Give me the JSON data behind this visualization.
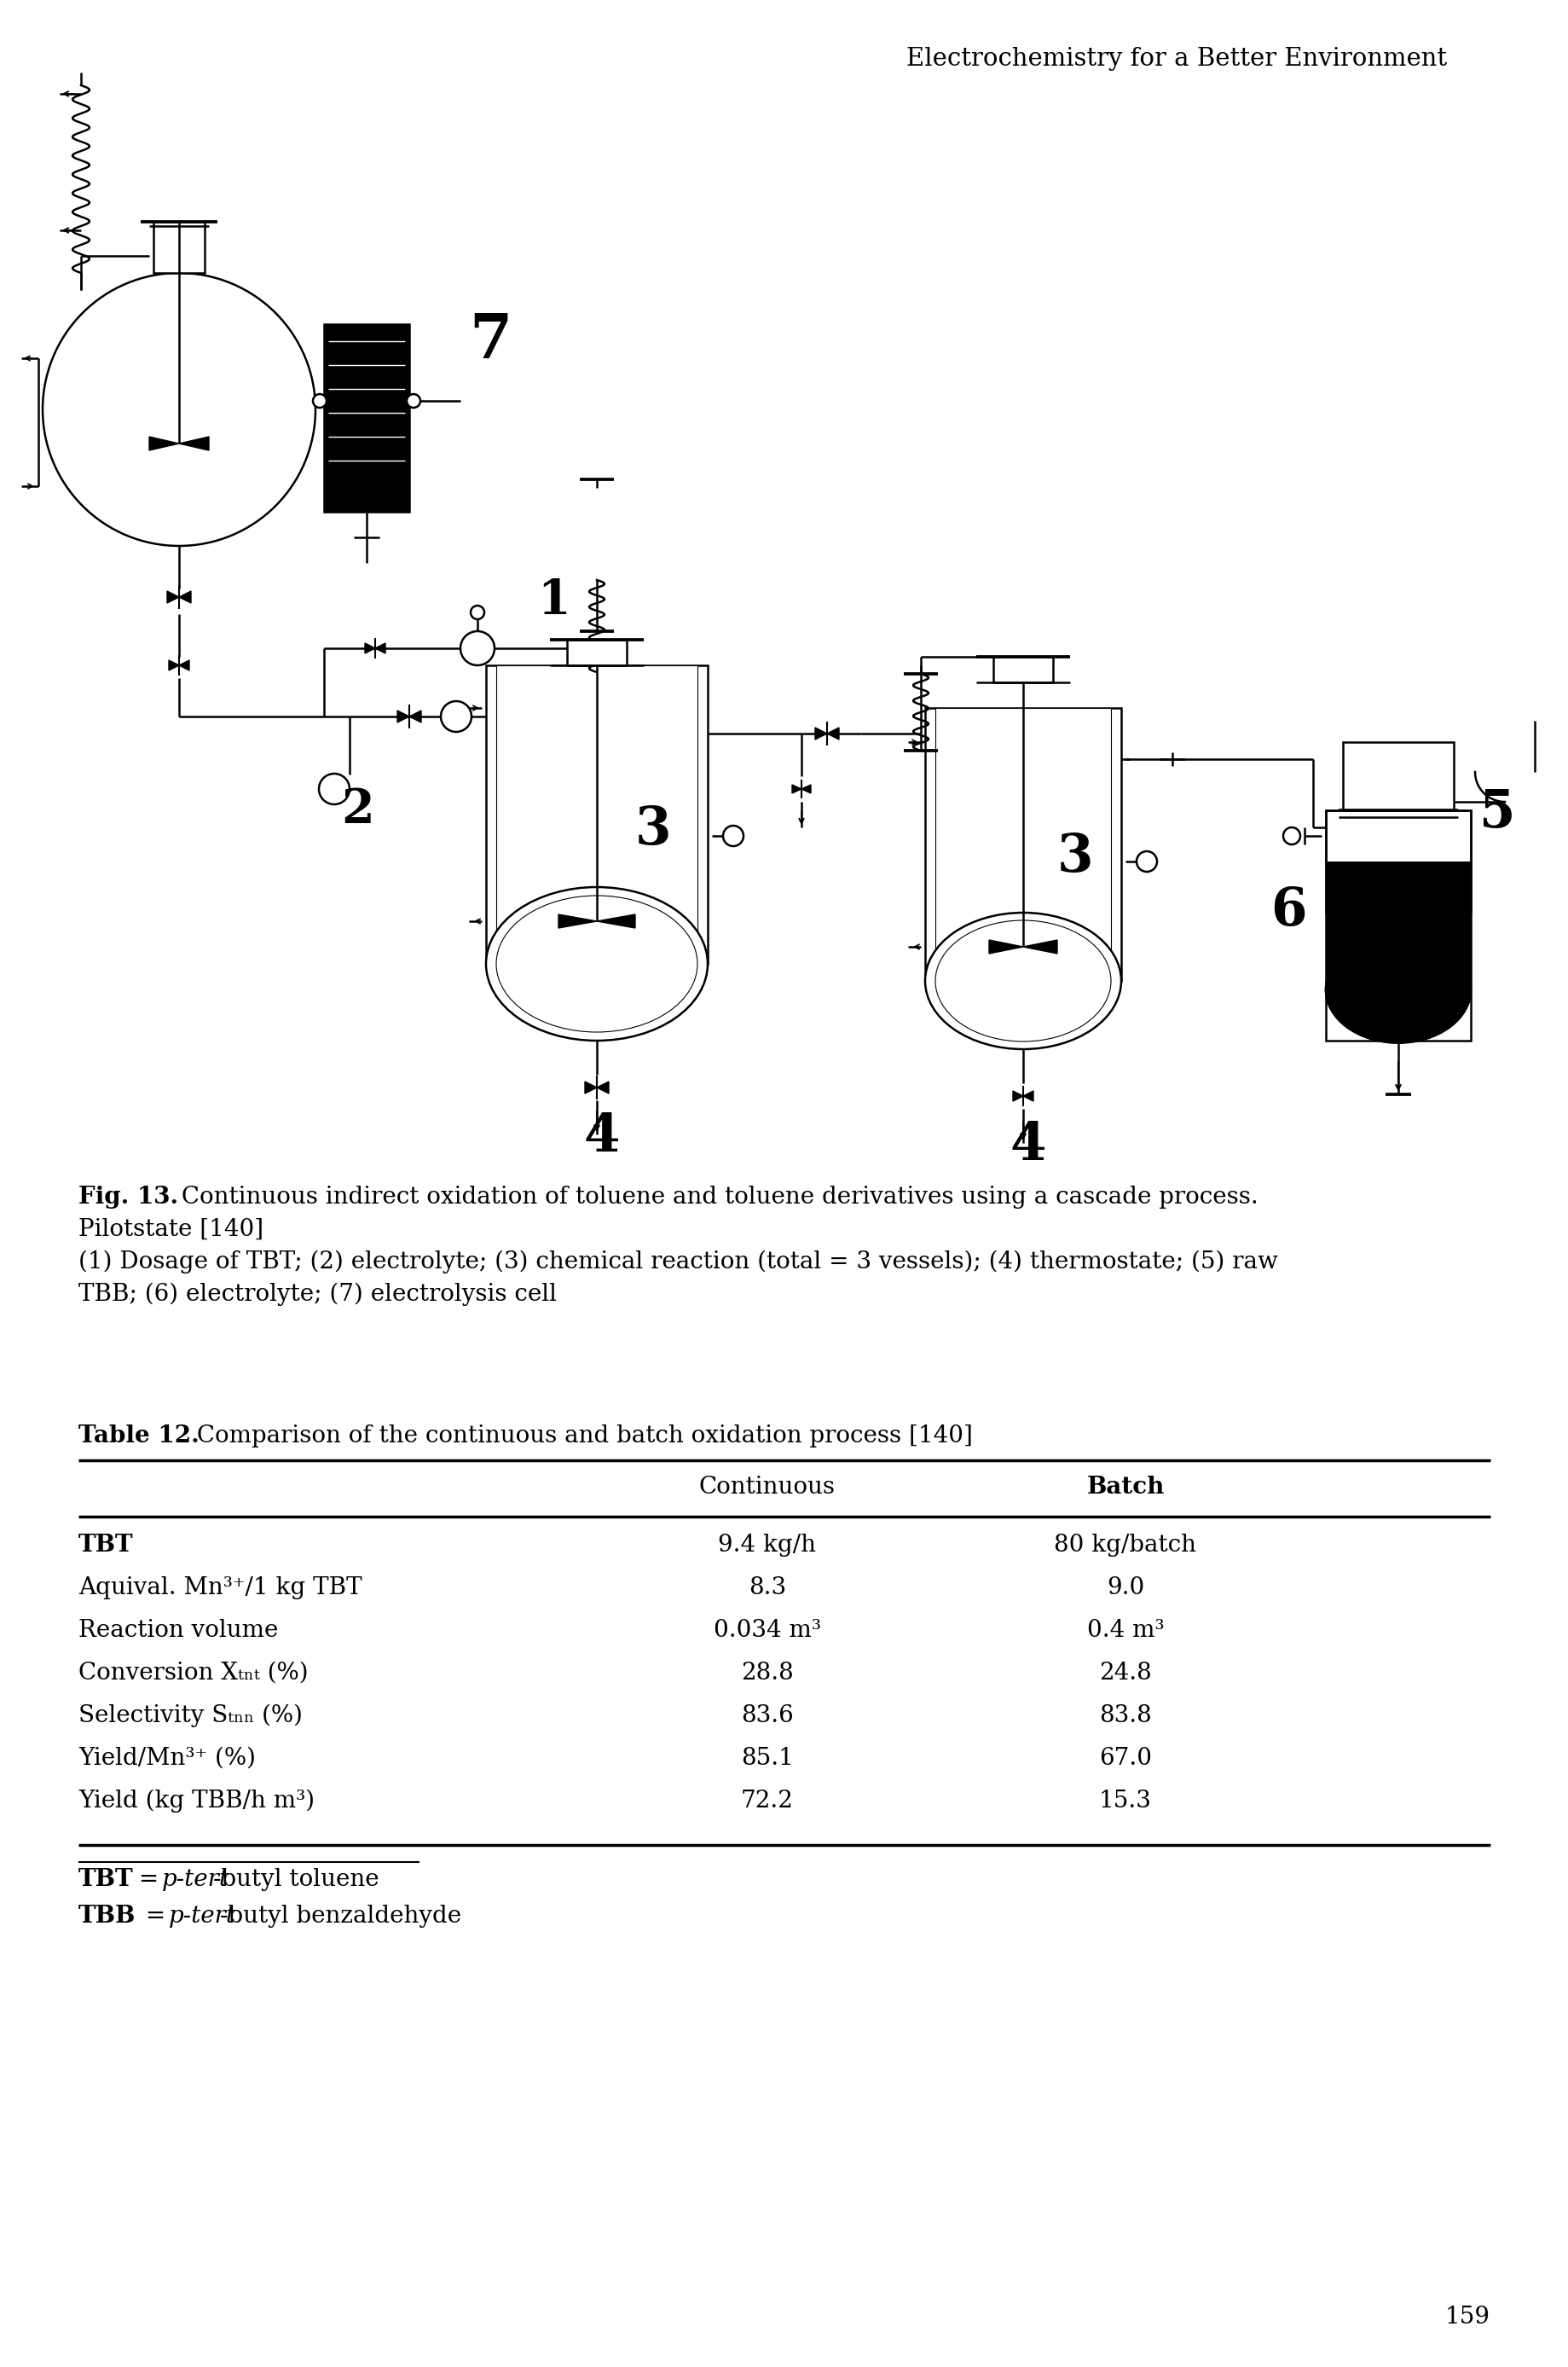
{
  "page_header": "Electrochemistry for a Better Environment",
  "page_number": "159",
  "fig_caption_bold": "Fig. 13.",
  "fig_caption_rest": " Continuous indirect oxidation of toluene and toluene derivatives using a cascade process.",
  "fig_caption_line2": "Pilotstate [140]",
  "fig_caption_line3": "(1) Dosage of TBT; (2) electrolyte; (3) chemical reaction (total = 3 vessels); (4) thermostate; (5) raw",
  "fig_caption_line4": "TBB; (6) electrolyte; (7) electrolysis cell",
  "table_title_bold": "Table 12.",
  "table_title_rest": " Comparison of the continuous and batch oxidation process [140]",
  "col_header1": "Continuous",
  "col_header2": "Batch",
  "rows": [
    {
      "label": "TBT",
      "bold": true,
      "c1": "9.4 kg/h",
      "c2": "80 kg/batch"
    },
    {
      "label": "Aquival. Mn³⁺/1 kg TBT",
      "bold": false,
      "c1": "8.3",
      "c2": "9.0"
    },
    {
      "label": "Reaction volume",
      "bold": false,
      "c1": "0.034 m³",
      "c2": "0.4 m³"
    },
    {
      "label": "Conversion Xₜₙₜ (%)",
      "bold": false,
      "c1": "28.8",
      "c2": "24.8"
    },
    {
      "label": "Selectivity Sₜₙₙ (%)",
      "bold": false,
      "c1": "83.6",
      "c2": "83.8"
    },
    {
      "label": "Yield/Mn³⁺ (%)",
      "bold": false,
      "c1": "85.1",
      "c2": "67.0"
    },
    {
      "label": "Yield (kg TBB/h m³)",
      "bold": false,
      "c1": "72.2",
      "c2": "15.3"
    }
  ],
  "fn1_bold": "TBT",
  "fn1_italic": " = p-tert",
  "fn1_rest": "-butyl toluene",
  "fn2_bold": "TBB",
  "fn2_italic": " = p-tert",
  "fn2_rest": "-butyl benzaldehyde",
  "bg": "#ffffff",
  "fg": "#000000"
}
